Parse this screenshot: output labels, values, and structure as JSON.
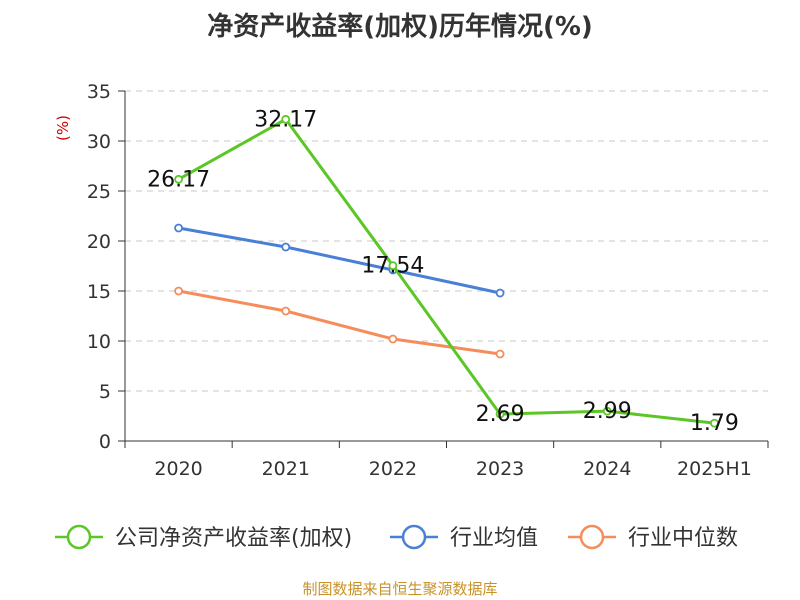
{
  "chart_data": {
    "type": "line",
    "title": "净资产收益率(加权)历年情况(%)",
    "ylabel": "(%)",
    "categories": [
      "2020",
      "2021",
      "2022",
      "2023",
      "2024",
      "2025H1"
    ],
    "ylim": [
      0,
      35
    ],
    "yticks": [
      0,
      5,
      10,
      15,
      20,
      25,
      30,
      35
    ],
    "grid": true,
    "legend_position": "bottom",
    "series": [
      {
        "name": "公司净资产收益率(加权)",
        "color": "#5bc726",
        "values": [
          26.17,
          32.17,
          17.54,
          2.69,
          2.99,
          1.79
        ],
        "labels": [
          "26.17",
          "32.17",
          "17.54",
          "2.69",
          "2.99",
          "1.79"
        ]
      },
      {
        "name": "行业均值",
        "color": "#4a7fd6",
        "values": [
          21.3,
          19.4,
          17.1,
          14.8,
          null,
          null
        ]
      },
      {
        "name": "行业中位数",
        "color": "#f58c5a",
        "values": [
          15.0,
          13.0,
          10.2,
          8.7,
          null,
          null
        ]
      }
    ]
  },
  "source": "制图数据来自恒生聚源数据库"
}
